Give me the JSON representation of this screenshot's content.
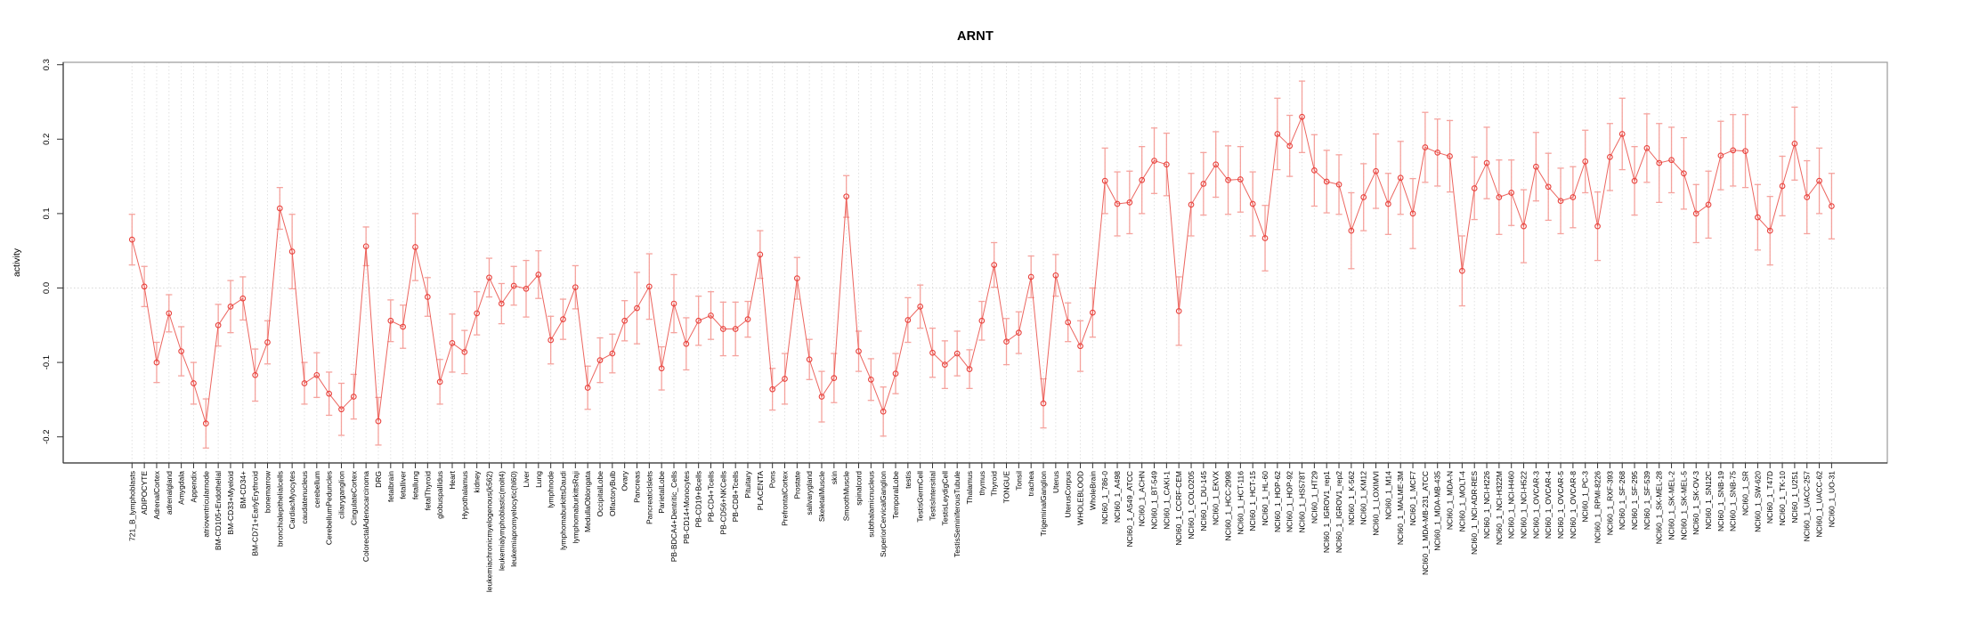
{
  "figure": {
    "title": "ARNT",
    "ylabel": "activity"
  },
  "chart_data": {
    "type": "line",
    "title": "ARNT",
    "xlabel": "",
    "ylabel": "activity",
    "ylim": [
      -0.235,
      0.303
    ],
    "y_ticks": [
      "0.3",
      "0.2",
      "0.1",
      "0.0",
      "-0.1",
      "-0.2"
    ],
    "grid": "vertical dotted line at every category",
    "zero_line": true,
    "legend_position": "none",
    "marker": "open-circle",
    "error_bars": true,
    "colors": {
      "line": "#ea544e",
      "point": "#e8413c",
      "error_bar": "#f59a94",
      "grid": "#e2e2e2",
      "zero_line": "#d8d8d8",
      "box": "#9a9a9a",
      "axis": "#333333",
      "text": "#000000",
      "background": "#ffffff"
    },
    "categories": [
      "721_B_lymphoblasts",
      "ADIPOCYTE",
      "AdrenalCortex",
      "adrenalgland",
      "Amygdala",
      "Appendix",
      "atrioventricularnode",
      "BM-CD105+Endothelial",
      "BM-CD33+Myeloid",
      "BM-CD34+",
      "BM-CD71+EarlyErythroid",
      "bonemarrow",
      "bronchialepithelialcells",
      "CardiacMyocytes",
      "caudatenucleus",
      "cerebellum",
      "CerebellumPeduncles",
      "ciliaryganglion",
      "CingulateCortex",
      "ColorectalAdenocarcinoma",
      "DRG",
      "fetalbrain",
      "fetalliver",
      "fetallung",
      "fetalThyroid",
      "globuspallidus",
      "Heart",
      "Hypothalamus",
      "kidney",
      "leukemiachronicmyelogenous(k562)",
      "leukemialymphoblastic(molt4)",
      "leukemiapromyelocytic(hl60)",
      "Liver",
      "Lung",
      "lymphnode",
      "lymphomaburkittsDaudi",
      "lymphomaburkittsRaji",
      "MedullaOblongata",
      "OccipitalLobe",
      "OlfactoryBulb",
      "Ovary",
      "Pancreas",
      "PancreaticIslets",
      "ParietalLobe",
      "PB-BDCA4+Dentritic_Cells",
      "PB-CD14+Monocytes",
      "PB-CD19+Bcells",
      "PB-CD4+Tcells",
      "PB-CD56+NKCells",
      "PB-CD8+Tcells",
      "Pituitary",
      "PLACENTA",
      "Pons",
      "PrefrontalCortex",
      "Prostate",
      "salivarygland",
      "SkeletalMuscle",
      "skin",
      "SmoothMuscle",
      "spinalcord",
      "subthalamicnucleus",
      "SuperiorCervicalGanglion",
      "TemporalLobe",
      "testis",
      "TestisGermCell",
      "TestisIntersitial",
      "TestisLeydigCell",
      "TestisSeminiferousTubule",
      "Thalamus",
      "thymus",
      "Thyroid",
      "TONGUE",
      "Tonsil",
      "trachea",
      "TrigeminalGanglion",
      "Uterus",
      "UterusCorpus",
      "WHOLEBLOOD",
      "WholeBrain",
      "NCI60_1_786-0",
      "NCI60_1_A498",
      "NCI60_1_A549_ATCC",
      "NCI60_1_ACHN",
      "NCI60_1_BT-549",
      "NCI60_1_CAKI-1",
      "NCI60_1_CCRF-CEM",
      "NCI60_1_COLO205",
      "NCI60_1_DU-145",
      "NCI60_1_EKVX",
      "NCI60_1_HCC-2998",
      "NCI60_1_HCT-116",
      "NCI60_1_HCT-15",
      "NCI60_1_HL-60",
      "NCI60_1_HOP-62",
      "NCI60_1_HOP-92",
      "NCI60_1_HS578T",
      "NCI60_1_HT29",
      "NCI60_1_IGROV1_rep1",
      "NCI60_1_IGROV1_rep2",
      "NCI60_1_K-562",
      "NCI60_1_KM12",
      "NCI60_1_LOXIMVI",
      "NCI60_1_M14",
      "NCI60_1_MALME-3M",
      "NCI60_1_MCF7",
      "NCI60_1_MDA-MB-231_ATCC",
      "NCI60_1_MDA-MB-435",
      "NCI60_1_MDA-N",
      "NCI60_1_MOLT-4",
      "NCI60_1_NCI-ADR-RES",
      "NCI60_1_NCI-H226",
      "NCI60_1_NCI-H322M",
      "NCI60_1_NCI-H460",
      "NCI60_1_NCI-H522",
      "NCI60_1_OVCAR-3",
      "NCI60_1_OVCAR-4",
      "NCI60_1_OVCAR-5",
      "NCI60_1_OVCAR-8",
      "NCI60_1_PC-3",
      "NCI60_1_RPMI-8226",
      "NCI60_1_RXF-393",
      "NCI60_1_SF-268",
      "NCI60_1_SF-295",
      "NCI60_1_SF-539",
      "NCI60_1_SK-MEL-28",
      "NCI60_1_SK-MEL-2",
      "NCI60_1_SK-MEL-5",
      "NCI60_1_SK-OV-3",
      "NCI60_1_SN12C",
      "NCI60_1_SNB-19",
      "NCI60_1_SNB-75",
      "NCI60_1_SR",
      "NCI60_1_SW-620",
      "NCI60_1_T47D",
      "NCI60_1_TK-10",
      "NCI60_1_U251",
      "NCI60_1_UACC-257",
      "NCI60_1_UACC-62",
      "NCI60_1_UO-31"
    ],
    "series": [
      {
        "name": "activity",
        "values": [
          0.065,
          0.002,
          -0.1,
          -0.034,
          -0.085,
          -0.128,
          -0.182,
          -0.05,
          -0.025,
          -0.014,
          -0.117,
          -0.073,
          0.107,
          0.049,
          -0.128,
          -0.117,
          -0.142,
          -0.163,
          -0.146,
          0.056,
          -0.179,
          -0.044,
          -0.052,
          0.055,
          -0.012,
          -0.126,
          -0.074,
          -0.086,
          -0.034,
          0.014,
          -0.021,
          0.003,
          -0.001,
          0.018,
          -0.07,
          -0.042,
          0.001,
          -0.134,
          -0.097,
          -0.088,
          -0.044,
          -0.027,
          0.002,
          -0.108,
          -0.021,
          -0.075,
          -0.044,
          -0.037,
          -0.055,
          -0.055,
          -0.042,
          0.045,
          -0.136,
          -0.122,
          0.013,
          -0.096,
          -0.146,
          -0.121,
          0.123,
          -0.085,
          -0.123,
          -0.166,
          -0.115,
          -0.043,
          -0.025,
          -0.087,
          -0.103,
          -0.088,
          -0.109,
          -0.044,
          0.031,
          -0.072,
          -0.06,
          0.015,
          -0.155,
          0.017,
          -0.046,
          -0.078,
          -0.033,
          0.144,
          0.113,
          0.115,
          0.145,
          0.171,
          0.166,
          -0.031,
          0.112,
          0.14,
          0.166,
          0.145,
          0.146,
          0.113,
          0.067,
          0.207,
          0.191,
          0.23,
          0.158,
          0.143,
          0.139,
          0.077,
          0.122,
          0.157,
          0.113,
          0.148,
          0.1,
          0.189,
          0.182,
          0.177,
          0.023,
          0.134,
          0.168,
          0.122,
          0.128,
          0.083,
          0.163,
          0.136,
          0.117,
          0.122,
          0.17,
          0.083,
          0.176,
          0.207,
          0.144,
          0.188,
          0.168,
          0.172,
          0.154,
          0.1,
          0.112,
          0.178,
          0.185,
          0.184,
          0.095,
          0.077,
          0.137,
          0.194,
          0.122,
          0.144,
          0.11
        ],
        "stderr": [
          0.034,
          0.027,
          0.027,
          0.025,
          0.033,
          0.028,
          0.033,
          0.028,
          0.035,
          0.029,
          0.035,
          0.029,
          0.028,
          0.05,
          0.028,
          0.03,
          0.029,
          0.035,
          0.03,
          0.026,
          0.032,
          0.028,
          0.029,
          0.045,
          0.026,
          0.03,
          0.039,
          0.029,
          0.029,
          0.026,
          0.027,
          0.026,
          0.038,
          0.032,
          0.032,
          0.027,
          0.029,
          0.029,
          0.03,
          0.026,
          0.027,
          0.048,
          0.044,
          0.029,
          0.039,
          0.035,
          0.033,
          0.032,
          0.036,
          0.036,
          0.024,
          0.032,
          0.028,
          0.034,
          0.028,
          0.027,
          0.034,
          0.033,
          0.028,
          0.027,
          0.028,
          0.033,
          0.027,
          0.03,
          0.029,
          0.033,
          0.032,
          0.03,
          0.026,
          0.026,
          0.03,
          0.031,
          0.028,
          0.028,
          0.033,
          0.028,
          0.026,
          0.034,
          0.033,
          0.044,
          0.043,
          0.042,
          0.045,
          0.044,
          0.042,
          0.046,
          0.042,
          0.042,
          0.044,
          0.046,
          0.044,
          0.043,
          0.044,
          0.048,
          0.041,
          0.048,
          0.048,
          0.042,
          0.04,
          0.051,
          0.045,
          0.05,
          0.041,
          0.049,
          0.047,
          0.047,
          0.045,
          0.048,
          0.047,
          0.042,
          0.048,
          0.05,
          0.044,
          0.049,
          0.046,
          0.045,
          0.044,
          0.041,
          0.042,
          0.046,
          0.045,
          0.048,
          0.046,
          0.046,
          0.053,
          0.044,
          0.048,
          0.039,
          0.045,
          0.046,
          0.048,
          0.049,
          0.044,
          0.046,
          0.04,
          0.049,
          0.049,
          0.044,
          0.044
        ]
      }
    ]
  }
}
